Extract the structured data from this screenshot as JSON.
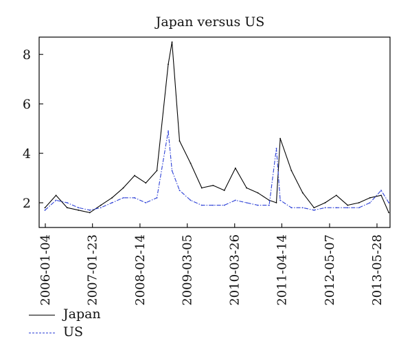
{
  "chart_data": {
    "type": "line",
    "title": "Japan versus US",
    "xlabel": "",
    "ylabel": "",
    "x_ticks": [
      "2006-01-04",
      "2007-01-23",
      "2008-02-14",
      "2009-03-05",
      "2010-03-26",
      "2011-04-14",
      "2012-05-07",
      "2013-05-28"
    ],
    "x": [
      "2006-01",
      "2006-04",
      "2006-07",
      "2006-10",
      "2007-01",
      "2007-04",
      "2007-07",
      "2007-10",
      "2008-01",
      "2008-04",
      "2008-07",
      "2008-10",
      "2008-11",
      "2009-01",
      "2009-04",
      "2009-07",
      "2009-10",
      "2010-01",
      "2010-04",
      "2010-07",
      "2010-10",
      "2011-01",
      "2011-03",
      "2011-04",
      "2011-07",
      "2011-10",
      "2012-01",
      "2012-04",
      "2012-07",
      "2012-10",
      "2013-01",
      "2013-04",
      "2013-07",
      "2013-09"
    ],
    "ylim": [
      1,
      8.7
    ],
    "y_ticks": [
      2,
      4,
      6,
      8
    ],
    "series": [
      {
        "name": "Japan",
        "color": "#000000",
        "style": "solid",
        "values": [
          1.8,
          2.3,
          1.8,
          1.7,
          1.6,
          1.9,
          2.2,
          2.6,
          3.1,
          2.8,
          3.3,
          7.6,
          8.5,
          4.5,
          3.6,
          2.6,
          2.7,
          2.5,
          3.4,
          2.6,
          2.4,
          2.1,
          2.0,
          4.6,
          3.3,
          2.4,
          1.8,
          2.0,
          2.3,
          1.9,
          2.0,
          2.2,
          2.3,
          1.6
        ]
      },
      {
        "name": "US",
        "color": "#2b3fd6",
        "style": "dashdot",
        "values": [
          1.7,
          2.1,
          2.0,
          1.8,
          1.7,
          1.8,
          2.0,
          2.2,
          2.2,
          2.0,
          2.2,
          4.9,
          3.3,
          2.5,
          2.1,
          1.9,
          1.9,
          1.9,
          2.1,
          2.0,
          1.9,
          1.9,
          4.2,
          2.1,
          1.8,
          1.8,
          1.7,
          1.8,
          1.8,
          1.8,
          1.8,
          2.0,
          2.5,
          2.0
        ]
      }
    ],
    "grid": false,
    "legend_position": "bottom-left"
  }
}
